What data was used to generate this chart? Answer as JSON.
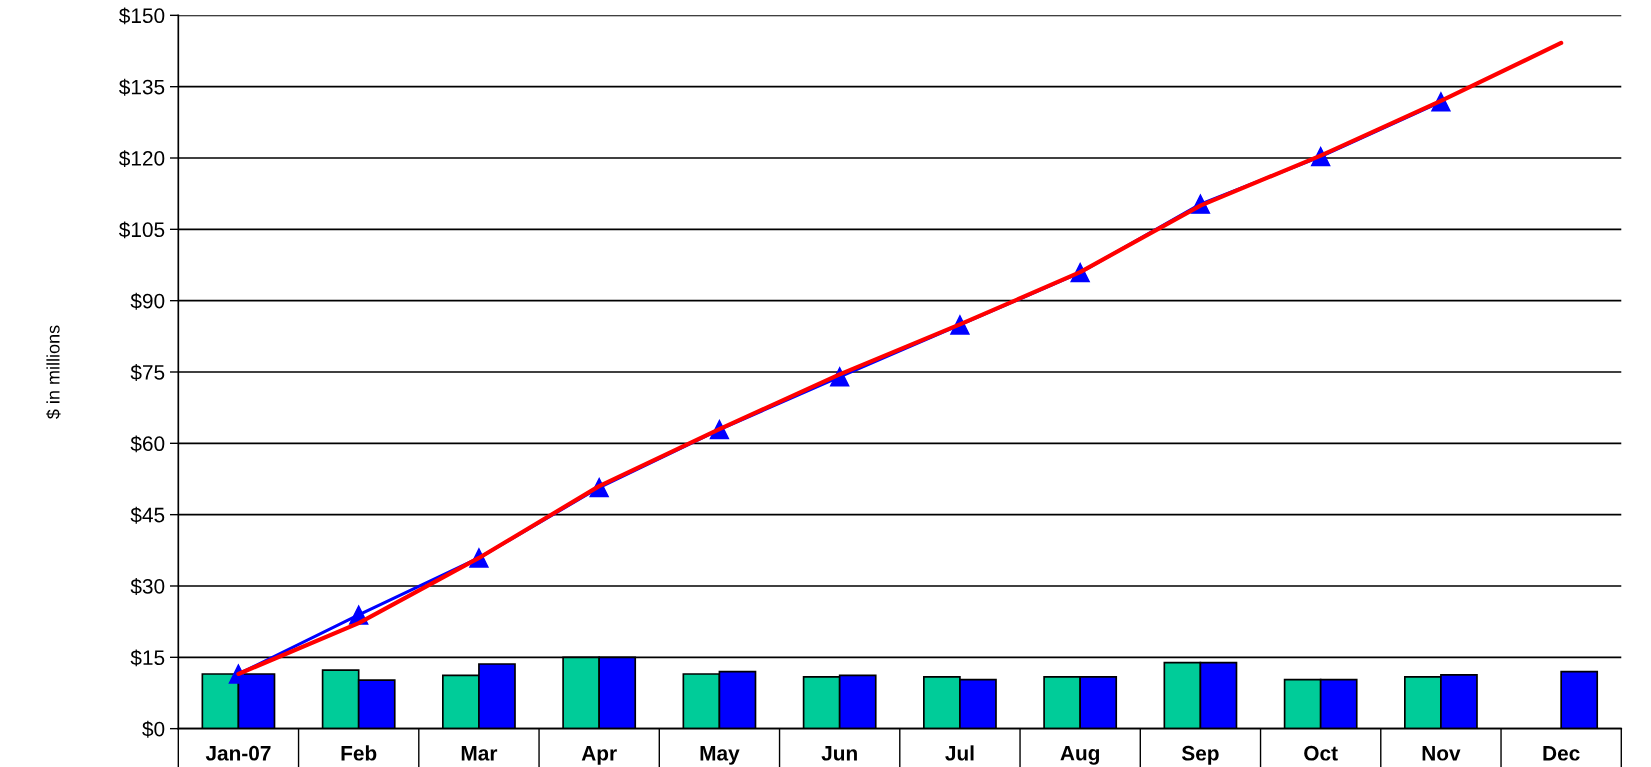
{
  "chart_data": {
    "type": "bar",
    "ylabel": "$ in millions",
    "categories": [
      "Jan-07",
      "Feb",
      "Mar",
      "Apr",
      "May",
      "Jun",
      "Jul",
      "Aug",
      "Sep",
      "Oct",
      "Nov",
      "Dec"
    ],
    "series": [
      {
        "color": "#00cc99",
        "values": [
          11.5,
          12.3,
          11.2,
          15.0,
          11.5,
          10.9,
          10.9,
          10.9,
          13.9,
          10.3,
          10.9,
          null
        ]
      },
      {
        "color": "#0000ff",
        "values": [
          11.5,
          10.2,
          13.6,
          15.0,
          12.0,
          11.2,
          10.3,
          10.9,
          13.9,
          10.3,
          11.3,
          12.0
        ]
      },
      {
        "type": "line",
        "color": "#ff0000",
        "marker": "none",
        "values": [
          11.5,
          22.2,
          35.9,
          51.0,
          63.0,
          74.5,
          85.0,
          96.0,
          110.0,
          120.5,
          132.0,
          144.2
        ]
      },
      {
        "type": "line",
        "color": "#0000ff",
        "marker": "triangle",
        "values": [
          11.5,
          23.9,
          35.9,
          50.7,
          62.9,
          74.0,
          84.9,
          95.9,
          110.3,
          120.3,
          131.8,
          null
        ]
      }
    ],
    "ylim": [
      0,
      150
    ],
    "yticks": [
      {
        "value": 0,
        "label": "$0"
      },
      {
        "value": 15,
        "label": "$15"
      },
      {
        "value": 30,
        "label": "$30"
      },
      {
        "value": 45,
        "label": "$45"
      },
      {
        "value": 60,
        "label": "$60"
      },
      {
        "value": 75,
        "label": "$75"
      },
      {
        "value": 90,
        "label": "$90"
      },
      {
        "value": 105,
        "label": "$105"
      },
      {
        "value": 120,
        "label": "$120"
      },
      {
        "value": 135,
        "label": "$135"
      },
      {
        "value": 150,
        "label": "$150"
      }
    ],
    "grid": "y"
  }
}
